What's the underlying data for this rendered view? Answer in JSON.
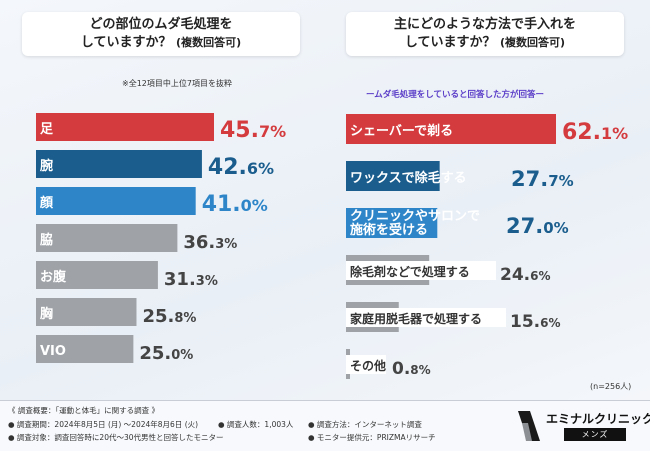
{
  "left_panel": {
    "title_line1": "どの部位のムダ毛処理を",
    "title_line2": "していますか？",
    "title_suffix": "(複数回答可)",
    "note": "※全12項目中上位7項目を抜粋"
  },
  "right_panel": {
    "title_line1": "主にどのような方法で手入れを",
    "title_line2": "していますか？",
    "title_suffix": "(複数回答可)",
    "note": "ームダ毛処理をしていると回答した方が回答ー",
    "n_label": "(n=256人)"
  },
  "colors": {
    "red": "#d43b3e",
    "navy": "#1b5e8e",
    "blue": "#2e86c9",
    "gray": "#9fa3a8"
  },
  "chart_data": [
    {
      "type": "bar",
      "orientation": "horizontal",
      "title": "どの部位のムダ毛処理をしていますか？(複数回答可)",
      "unit": "%",
      "categories": [
        "足",
        "腕",
        "顔",
        "脇",
        "お腹",
        "胸",
        "VIO"
      ],
      "values": [
        45.7,
        42.6,
        41.0,
        36.3,
        31.3,
        25.8,
        25.0
      ],
      "xlim": [
        0,
        100
      ]
    },
    {
      "type": "bar",
      "orientation": "horizontal",
      "title": "主にどのような方法で手入れをしていますか？(複数回答可)",
      "unit": "%",
      "categories": [
        "シェーバーで剃る",
        "ワックスで除毛する",
        "クリニックやサロンで施術を受ける",
        "除毛剤などで処理する",
        "家庭用脱毛器で処理する",
        "その他"
      ],
      "values": [
        62.1,
        27.7,
        27.0,
        24.6,
        15.6,
        0.8
      ],
      "xlim": [
        0,
        100
      ]
    }
  ],
  "footer": {
    "heading": "《 調査概要：「運動と体毛」に関する調査 》",
    "period": "● 調査期間：2024年8月5日 (月) ～2024年8月6日 (火)",
    "target": "● 調査対象：調査回答時に20代～30代男性と回答したモニター",
    "count": "● 調査人数：1,003人",
    "method": "● 調査方法：インターネット調査",
    "provider": "● モニター提供元：PRIZMAリサーチ"
  },
  "logo": {
    "name": "エミナルクリニック",
    "sub": "メンズ"
  }
}
